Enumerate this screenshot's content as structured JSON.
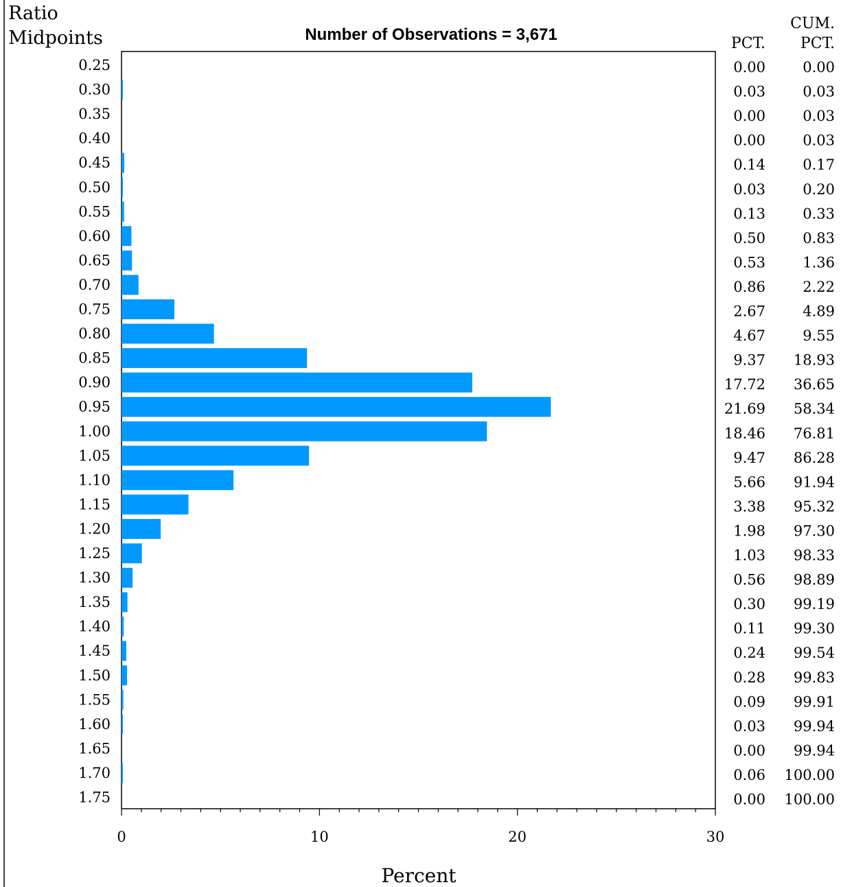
{
  "chart_data": {
    "type": "bar",
    "orientation": "horizontal",
    "title": "Number of Observations = 3,671",
    "ylabel": "Ratio\nMidpoints",
    "xlabel": "Percent",
    "xlim": [
      0,
      30
    ],
    "xticks": [
      0,
      10,
      20,
      30
    ],
    "bar_color": "#0099ff",
    "pct_header": "PCT.",
    "cum_pct_header": "CUM.\nPCT.",
    "categories": [
      "0.25",
      "0.30",
      "0.35",
      "0.40",
      "0.45",
      "0.50",
      "0.55",
      "0.60",
      "0.65",
      "0.70",
      "0.75",
      "0.80",
      "0.85",
      "0.90",
      "0.95",
      "1.00",
      "1.05",
      "1.10",
      "1.15",
      "1.20",
      "1.25",
      "1.30",
      "1.35",
      "1.40",
      "1.45",
      "1.50",
      "1.55",
      "1.60",
      "1.65",
      "1.70",
      "1.75"
    ],
    "values": [
      0.0,
      0.03,
      0.0,
      0.0,
      0.14,
      0.03,
      0.13,
      0.5,
      0.53,
      0.86,
      2.67,
      4.67,
      9.37,
      17.72,
      21.69,
      18.46,
      9.47,
      5.66,
      3.38,
      1.98,
      1.03,
      0.56,
      0.3,
      0.11,
      0.24,
      0.28,
      0.09,
      0.03,
      0.0,
      0.06,
      0.0
    ],
    "pct_labels": [
      "0.00",
      "0.03",
      "0.00",
      "0.00",
      "0.14",
      "0.03",
      "0.13",
      "0.50",
      "0.53",
      "0.86",
      "2.67",
      "4.67",
      "9.37",
      "17.72",
      "21.69",
      "18.46",
      "9.47",
      "5.66",
      "3.38",
      "1.98",
      "1.03",
      "0.56",
      "0.30",
      "0.11",
      "0.24",
      "0.28",
      "0.09",
      "0.03",
      "0.00",
      "0.06",
      "0.00"
    ],
    "cum_pct_labels": [
      "0.00",
      "0.03",
      "0.03",
      "0.03",
      "0.17",
      "0.20",
      "0.33",
      "0.83",
      "1.36",
      "2.22",
      "4.89",
      "9.55",
      "18.93",
      "36.65",
      "58.34",
      "76.81",
      "86.28",
      "91.94",
      "95.32",
      "97.30",
      "98.33",
      "98.89",
      "99.19",
      "99.30",
      "99.54",
      "99.83",
      "99.91",
      "99.94",
      "99.94",
      "100.00",
      "100.00"
    ]
  }
}
